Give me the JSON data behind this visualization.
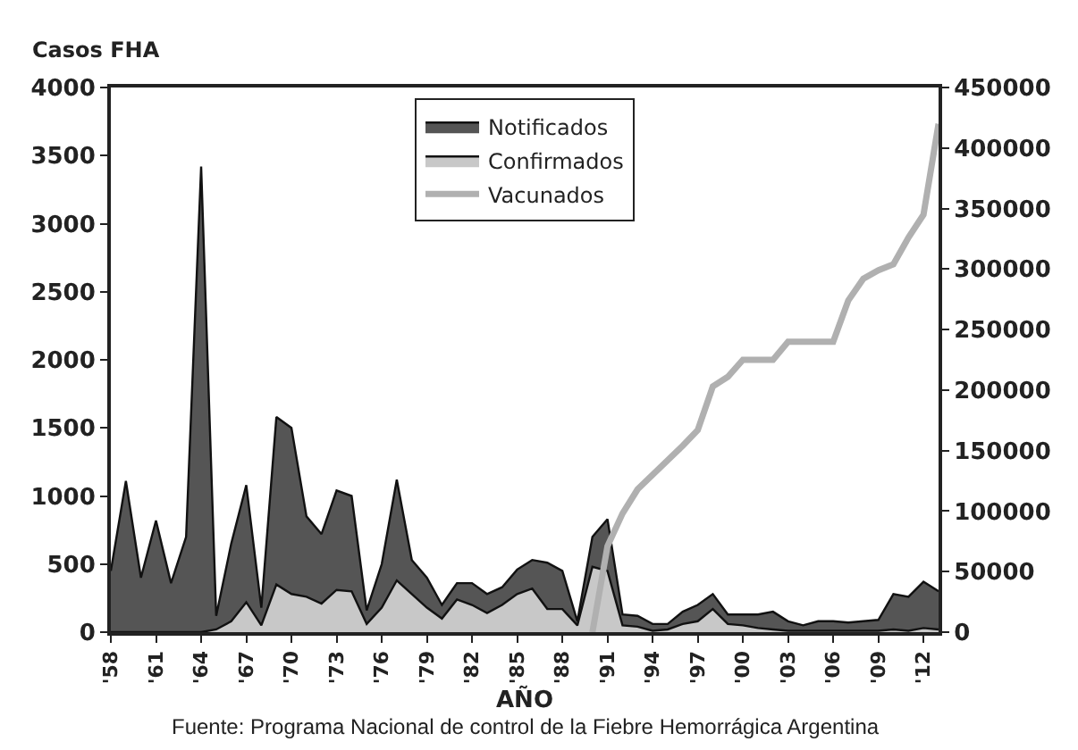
{
  "chart_data": {
    "type": "area",
    "ylabel": "Casos FHA",
    "xlabel": "AÑO",
    "annotations": [
      "Fuente: Programa Nacional de control de la Fiebre Hemorrágica Argentina"
    ],
    "x": [
      1958,
      1959,
      1960,
      1961,
      1962,
      1963,
      1964,
      1965,
      1966,
      1967,
      1968,
      1969,
      1970,
      1971,
      1972,
      1973,
      1974,
      1975,
      1976,
      1977,
      1978,
      1979,
      1980,
      1981,
      1982,
      1983,
      1984,
      1985,
      1986,
      1987,
      1988,
      1989,
      1990,
      1991,
      1992,
      1993,
      1994,
      1995,
      1996,
      1997,
      1998,
      1999,
      2000,
      2001,
      2002,
      2003,
      2004,
      2005,
      2006,
      2007,
      2008,
      2009,
      2010,
      2011,
      2012,
      2013
    ],
    "series": [
      {
        "name": "Notificados",
        "color": "#555555",
        "values": [
          450,
          1110,
          400,
          820,
          360,
          700,
          3420,
          120,
          650,
          1080,
          180,
          1580,
          1500,
          850,
          720,
          1040,
          1000,
          160,
          500,
          1120,
          530,
          400,
          200,
          360,
          360,
          280,
          330,
          460,
          530,
          510,
          450,
          80,
          700,
          830,
          130,
          120,
          60,
          60,
          150,
          200,
          280,
          130,
          130,
          130,
          150,
          80,
          50,
          80,
          80,
          70,
          80,
          90,
          280,
          260,
          370,
          300
        ]
      },
      {
        "name": "Confirmados",
        "color": "#c8c8c8",
        "values": [
          0,
          0,
          0,
          0,
          0,
          0,
          0,
          20,
          80,
          220,
          50,
          350,
          280,
          260,
          210,
          310,
          300,
          60,
          180,
          380,
          280,
          180,
          100,
          240,
          200,
          140,
          200,
          280,
          320,
          170,
          170,
          50,
          480,
          450,
          50,
          40,
          10,
          20,
          60,
          80,
          170,
          60,
          50,
          30,
          20,
          10,
          10,
          10,
          10,
          10,
          10,
          10,
          20,
          10,
          30,
          20
        ]
      },
      {
        "name": "Vacunados",
        "type": "line",
        "axis": "y2",
        "color": "#b0b0b0",
        "values": [
          null,
          null,
          null,
          null,
          null,
          null,
          null,
          null,
          null,
          null,
          null,
          null,
          null,
          null,
          null,
          null,
          null,
          null,
          null,
          null,
          null,
          null,
          null,
          null,
          null,
          null,
          null,
          null,
          null,
          null,
          null,
          null,
          0,
          71000,
          98000,
          118000,
          130000,
          142000,
          154000,
          167000,
          203000,
          211000,
          225000,
          225000,
          225000,
          240000,
          240000,
          240000,
          240000,
          274000,
          292000,
          299000,
          304000,
          326000,
          345000,
          420000
        ]
      }
    ],
    "xlim": [
      1958,
      2013
    ],
    "xticks": [
      {
        "value": 1958,
        "label": "'58"
      },
      {
        "value": 1961,
        "label": "'61"
      },
      {
        "value": 1964,
        "label": "'64"
      },
      {
        "value": 1967,
        "label": "'67"
      },
      {
        "value": 1970,
        "label": "'70"
      },
      {
        "value": 1973,
        "label": "'73"
      },
      {
        "value": 1976,
        "label": "'76"
      },
      {
        "value": 1979,
        "label": "'79"
      },
      {
        "value": 1982,
        "label": "'82"
      },
      {
        "value": 1985,
        "label": "'85"
      },
      {
        "value": 1988,
        "label": "'88"
      },
      {
        "value": 1991,
        "label": "'91"
      },
      {
        "value": 1994,
        "label": "'94"
      },
      {
        "value": 1997,
        "label": "'97"
      },
      {
        "value": 2000,
        "label": "'00"
      },
      {
        "value": 2003,
        "label": "'03"
      },
      {
        "value": 2006,
        "label": "'06"
      },
      {
        "value": 2009,
        "label": "'09"
      },
      {
        "value": 2012,
        "label": "'12"
      }
    ],
    "ylim": [
      0,
      4000
    ],
    "yticks": [
      0,
      500,
      1000,
      1500,
      2000,
      2500,
      3000,
      3500,
      4000
    ],
    "y2lim": [
      0,
      450000
    ],
    "y2ticks": [
      0,
      50000,
      100000,
      150000,
      200000,
      250000,
      300000,
      350000,
      400000,
      450000
    ],
    "legend": "top",
    "grid": false
  }
}
